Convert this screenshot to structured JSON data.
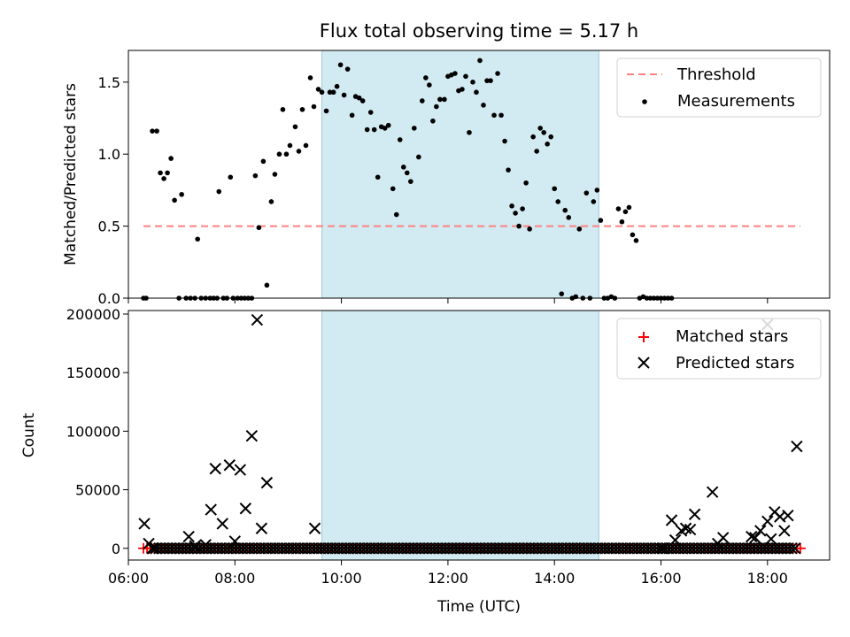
{
  "chart_data": [
    {
      "type": "scatter",
      "title": "Flux total observing time = 5.17 h",
      "xlabel": "",
      "ylabel": "Matched/Predicted stars",
      "xlim": [
        "06:00",
        "19:10"
      ],
      "ylim": [
        0,
        1.72
      ],
      "yticks": [
        "0.0",
        "0.5",
        "1.0",
        "1.5"
      ],
      "shaded_interval": [
        "09:38",
        "14:50"
      ],
      "legend": {
        "position": "upper right",
        "entries": [
          "Threshold",
          "Measurements"
        ]
      },
      "threshold": {
        "name": "Threshold",
        "value": 0.5,
        "x_range": [
          "06:17",
          "18:37"
        ],
        "color": "#ff8080"
      },
      "series": [
        {
          "name": "Measurements",
          "color": "#000000",
          "points": [
            [
              "06:17",
              0.0
            ],
            [
              "06:20",
              0.0
            ],
            [
              "06:27",
              1.16
            ],
            [
              "06:32",
              1.16
            ],
            [
              "06:36",
              0.87
            ],
            [
              "06:40",
              0.83
            ],
            [
              "06:44",
              0.87
            ],
            [
              "06:48",
              0.97
            ],
            [
              "06:52",
              0.68
            ],
            [
              "06:57",
              0.0
            ],
            [
              "07:00",
              0.72
            ],
            [
              "07:05",
              0.0
            ],
            [
              "07:10",
              0.0
            ],
            [
              "07:15",
              0.0
            ],
            [
              "07:18",
              0.41
            ],
            [
              "07:22",
              0.0
            ],
            [
              "07:27",
              0.0
            ],
            [
              "07:32",
              0.0
            ],
            [
              "07:36",
              0.0
            ],
            [
              "07:40",
              0.0
            ],
            [
              "07:42",
              0.74
            ],
            [
              "07:47",
              0.0
            ],
            [
              "07:51",
              0.0
            ],
            [
              "07:55",
              0.84
            ],
            [
              "07:58",
              0.0
            ],
            [
              "08:03",
              0.0
            ],
            [
              "08:07",
              0.0
            ],
            [
              "08:11",
              0.0
            ],
            [
              "08:15",
              0.0
            ],
            [
              "08:19",
              0.0
            ],
            [
              "08:23",
              0.85
            ],
            [
              "08:27",
              0.49
            ],
            [
              "08:32",
              0.95
            ],
            [
              "08:36",
              0.09
            ],
            [
              "08:41",
              0.67
            ],
            [
              "08:45",
              0.86
            ],
            [
              "08:50",
              1.0
            ],
            [
              "08:54",
              1.31
            ],
            [
              "08:58",
              1.0
            ],
            [
              "09:02",
              1.06
            ],
            [
              "09:08",
              1.19
            ],
            [
              "09:12",
              1.02
            ],
            [
              "09:16",
              1.31
            ],
            [
              "09:20",
              1.06
            ],
            [
              "09:25",
              1.53
            ],
            [
              "09:29",
              1.33
            ],
            [
              "09:34",
              1.45
            ],
            [
              "09:38",
              1.43
            ],
            [
              "09:43",
              1.3
            ],
            [
              "09:47",
              1.43
            ],
            [
              "09:51",
              1.43
            ],
            [
              "09:55",
              1.47
            ],
            [
              "09:59",
              1.62
            ],
            [
              "10:03",
              1.41
            ],
            [
              "10:07",
              1.59
            ],
            [
              "10:12",
              1.27
            ],
            [
              "10:16",
              1.4
            ],
            [
              "10:20",
              1.39
            ],
            [
              "10:24",
              1.37
            ],
            [
              "10:29",
              1.17
            ],
            [
              "10:33",
              1.29
            ],
            [
              "10:37",
              1.17
            ],
            [
              "10:41",
              0.84
            ],
            [
              "10:45",
              1.19
            ],
            [
              "10:49",
              1.18
            ],
            [
              "10:53",
              1.2
            ],
            [
              "10:58",
              0.76
            ],
            [
              "11:02",
              0.58
            ],
            [
              "11:06",
              1.1
            ],
            [
              "11:10",
              0.91
            ],
            [
              "11:14",
              0.87
            ],
            [
              "11:18",
              0.81
            ],
            [
              "11:22",
              1.18
            ],
            [
              "11:27",
              0.98
            ],
            [
              "11:31",
              1.37
            ],
            [
              "11:35",
              1.53
            ],
            [
              "11:39",
              1.48
            ],
            [
              "11:43",
              1.23
            ],
            [
              "11:47",
              1.33
            ],
            [
              "11:51",
              1.38
            ],
            [
              "11:56",
              1.38
            ],
            [
              "12:00",
              1.54
            ],
            [
              "12:04",
              1.55
            ],
            [
              "12:08",
              1.56
            ],
            [
              "12:12",
              1.44
            ],
            [
              "12:16",
              1.45
            ],
            [
              "12:20",
              1.54
            ],
            [
              "12:24",
              1.15
            ],
            [
              "12:28",
              1.5
            ],
            [
              "12:32",
              1.43
            ],
            [
              "12:36",
              1.65
            ],
            [
              "12:40",
              1.34
            ],
            [
              "12:44",
              1.51
            ],
            [
              "12:48",
              1.51
            ],
            [
              "12:52",
              1.27
            ],
            [
              "12:56",
              1.56
            ],
            [
              "13:00",
              1.27
            ],
            [
              "13:04",
              1.09
            ],
            [
              "13:08",
              0.89
            ],
            [
              "13:12",
              0.64
            ],
            [
              "13:16",
              0.59
            ],
            [
              "13:20",
              0.5
            ],
            [
              "13:24",
              0.62
            ],
            [
              "13:28",
              0.8
            ],
            [
              "13:32",
              0.48
            ],
            [
              "13:36",
              1.12
            ],
            [
              "13:40",
              1.02
            ],
            [
              "13:44",
              1.18
            ],
            [
              "13:48",
              1.15
            ],
            [
              "13:52",
              1.07
            ],
            [
              "13:56",
              1.12
            ],
            [
              "14:00",
              0.76
            ],
            [
              "14:04",
              0.67
            ],
            [
              "14:08",
              0.03
            ],
            [
              "14:12",
              0.61
            ],
            [
              "14:16",
              0.56
            ],
            [
              "14:20",
              0.0
            ],
            [
              "14:24",
              0.01
            ],
            [
              "14:28",
              0.48
            ],
            [
              "14:32",
              0.0
            ],
            [
              "14:36",
              0.73
            ],
            [
              "14:40",
              0.0
            ],
            [
              "14:44",
              0.67
            ],
            [
              "14:48",
              0.75
            ],
            [
              "14:52",
              0.54
            ],
            [
              "14:56",
              0.0
            ],
            [
              "15:00",
              0.0
            ],
            [
              "15:04",
              0.01
            ],
            [
              "15:08",
              0.0
            ],
            [
              "15:12",
              0.62
            ],
            [
              "15:16",
              0.53
            ],
            [
              "15:20",
              0.6
            ],
            [
              "15:24",
              0.63
            ],
            [
              "15:28",
              0.44
            ],
            [
              "15:32",
              0.4
            ],
            [
              "15:36",
              0.0
            ],
            [
              "15:40",
              0.01
            ],
            [
              "15:44",
              0.0
            ],
            [
              "15:48",
              0.0
            ],
            [
              "15:52",
              0.0
            ],
            [
              "15:56",
              0.0
            ],
            [
              "16:00",
              0.0
            ],
            [
              "16:04",
              0.0
            ],
            [
              "16:08",
              0.0
            ],
            [
              "16:12",
              0.0
            ]
          ]
        }
      ]
    },
    {
      "type": "scatter",
      "title": "",
      "xlabel": "Time (UTC)",
      "ylabel": "Count",
      "xlim": [
        "06:00",
        "19:10"
      ],
      "ylim": [
        -10000,
        203000
      ],
      "yticks": [
        "0",
        "50000",
        "100000",
        "150000",
        "200000"
      ],
      "xticks": [
        "06:00",
        "08:00",
        "10:00",
        "12:00",
        "14:00",
        "16:00",
        "18:00"
      ],
      "shaded_interval": [
        "09:38",
        "14:50"
      ],
      "legend": {
        "position": "upper right",
        "entries": [
          "Matched stars",
          "Predicted stars"
        ]
      },
      "series": [
        {
          "name": "Matched stars",
          "marker": "+",
          "color": "#ff0000",
          "x_range": [
            "06:17",
            "18:37"
          ],
          "interval_minutes": 4,
          "value": 0
        },
        {
          "name": "Predicted stars",
          "marker": "x",
          "color": "#000000",
          "baseline": {
            "x_range": [
              "06:27",
              "18:33"
            ],
            "interval_minutes": 4,
            "value": 0
          },
          "points": [
            [
              "06:18",
              21000
            ],
            [
              "06:23",
              4000
            ],
            [
              "06:28",
              0
            ],
            [
              "07:08",
              10000
            ],
            [
              "07:15",
              2000
            ],
            [
              "07:27",
              3000
            ],
            [
              "07:33",
              33000
            ],
            [
              "07:38",
              68000
            ],
            [
              "07:46",
              21000
            ],
            [
              "07:54",
              71000
            ],
            [
              "08:00",
              6000
            ],
            [
              "08:06",
              67000
            ],
            [
              "08:12",
              34000
            ],
            [
              "08:19",
              96000
            ],
            [
              "08:25",
              195000
            ],
            [
              "08:30",
              17000
            ],
            [
              "08:36",
              56000
            ],
            [
              "09:30",
              17000
            ],
            [
              "16:02",
              0
            ],
            [
              "16:12",
              24000
            ],
            [
              "16:16",
              7000
            ],
            [
              "16:23",
              15000
            ],
            [
              "16:28",
              17000
            ],
            [
              "16:33",
              16000
            ],
            [
              "16:38",
              29000
            ],
            [
              "16:58",
              48000
            ],
            [
              "17:04",
              4000
            ],
            [
              "17:10",
              9000
            ],
            [
              "17:42",
              10000
            ],
            [
              "17:46",
              9000
            ],
            [
              "17:52",
              15000
            ],
            [
              "18:00",
              23000
            ],
            [
              "18:04",
              8000
            ],
            [
              "18:08",
              31000
            ],
            [
              "18:14",
              27000
            ],
            [
              "18:19",
              15000
            ],
            [
              "18:23",
              28000
            ],
            [
              "18:33",
              87000
            ],
            [
              "18:00",
              191000
            ]
          ]
        }
      ]
    }
  ]
}
